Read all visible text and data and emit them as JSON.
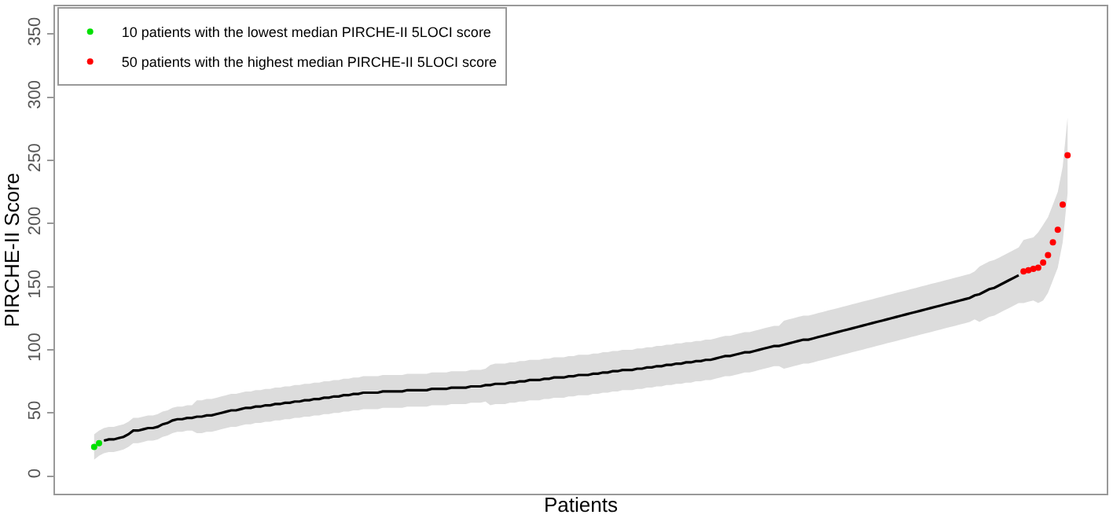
{
  "chart_data": {
    "type": "line",
    "xlabel": "Patients",
    "ylabel": "PIRCHE-II Score",
    "categories": [
      null,
      null,
      null,
      null,
      null,
      null,
      null,
      null,
      null,
      null,
      null,
      null,
      null,
      null,
      null,
      null,
      null,
      null,
      null,
      null,
      null,
      null,
      null,
      null,
      null,
      null,
      null,
      null,
      null,
      null,
      null,
      null,
      null,
      null,
      null,
      null,
      null,
      null,
      null,
      null,
      null,
      null,
      null,
      null,
      null,
      null,
      null,
      null,
      null,
      null,
      null,
      null,
      null,
      null,
      null,
      null,
      null,
      null,
      null,
      null,
      null,
      null,
      null,
      null,
      null,
      null,
      null,
      null,
      null,
      null,
      null,
      null,
      null,
      null,
      null,
      null,
      null,
      null,
      null,
      null,
      null,
      null,
      null,
      null,
      null,
      null,
      null,
      null,
      null,
      null,
      null,
      null,
      null,
      null,
      null,
      null,
      null,
      null,
      null,
      null,
      null,
      null,
      null,
      null,
      null,
      null,
      null,
      null,
      null,
      null,
      null,
      null,
      null,
      null,
      null,
      null,
      null,
      null,
      null,
      null,
      null,
      null,
      null,
      null,
      null,
      null,
      null,
      null,
      null,
      null,
      null,
      null,
      null,
      null,
      null,
      null,
      null,
      null,
      null,
      null,
      null,
      null,
      null,
      null,
      null,
      null,
      null,
      null,
      null,
      null,
      null,
      null,
      null,
      null,
      null,
      null,
      null,
      null,
      null,
      null,
      null,
      null,
      null,
      null,
      null,
      null,
      null,
      null,
      null,
      null,
      null,
      null,
      null,
      null,
      null,
      null,
      null,
      null,
      null,
      null,
      null,
      null,
      null,
      null,
      null,
      null,
      null,
      null,
      null,
      null,
      null,
      null,
      null,
      null,
      null,
      null,
      null,
      null,
      null,
      null
    ],
    "ylim": [
      -14,
      372
    ],
    "yticks": [
      0,
      50,
      100,
      150,
      200,
      250,
      300,
      350
    ],
    "legend": "top left",
    "tick_labels": "y",
    "series": [
      {
        "color": "#000000",
        "marker": "none",
        "values": [
          null,
          null,
          28,
          29,
          29,
          30,
          31,
          33,
          36,
          36,
          37,
          38,
          38,
          39,
          41,
          42,
          44,
          45,
          45,
          46,
          46,
          47,
          47,
          48,
          48,
          49,
          50,
          51,
          52,
          52,
          53,
          54,
          54,
          55,
          55,
          56,
          56,
          57,
          57,
          58,
          58,
          59,
          59,
          60,
          60,
          61,
          61,
          62,
          62,
          63,
          63,
          64,
          64,
          65,
          65,
          66,
          66,
          66,
          66,
          67,
          67,
          67,
          67,
          67,
          68,
          68,
          68,
          68,
          68,
          69,
          69,
          69,
          69,
          70,
          70,
          70,
          70,
          71,
          71,
          71,
          72,
          72,
          73,
          73,
          73,
          74,
          74,
          75,
          75,
          76,
          76,
          76,
          77,
          77,
          78,
          78,
          78,
          79,
          79,
          80,
          80,
          80,
          81,
          81,
          82,
          82,
          83,
          83,
          84,
          84,
          84,
          85,
          85,
          86,
          86,
          87,
          87,
          88,
          88,
          89,
          89,
          90,
          90,
          91,
          91,
          92,
          92,
          93,
          94,
          95,
          95,
          96,
          97,
          98,
          98,
          99,
          100,
          101,
          102,
          103,
          103,
          104,
          105,
          106,
          107,
          108,
          108,
          109,
          110,
          111,
          112,
          113,
          114,
          115,
          116,
          117,
          118,
          119,
          120,
          121,
          122,
          123,
          124,
          125,
          126,
          127,
          128,
          129,
          130,
          131,
          132,
          133,
          134,
          135,
          136,
          137,
          138,
          139,
          140,
          141,
          143,
          144,
          146,
          148,
          149,
          151,
          153,
          155,
          157,
          159,
          null,
          null,
          null,
          null,
          null,
          null,
          null,
          null,
          null,
          null
        ],
        "lower": [
          13,
          16,
          18,
          19,
          19,
          20,
          21,
          23,
          26,
          26,
          27,
          28,
          28,
          29,
          31,
          32,
          34,
          35,
          35,
          36,
          36,
          34,
          34,
          35,
          35,
          36,
          37,
          38,
          39,
          39,
          40,
          41,
          41,
          42,
          42,
          43,
          43,
          44,
          44,
          45,
          45,
          46,
          46,
          47,
          47,
          48,
          48,
          49,
          49,
          50,
          50,
          51,
          51,
          52,
          52,
          53,
          53,
          53,
          53,
          54,
          54,
          54,
          54,
          54,
          55,
          55,
          55,
          55,
          55,
          56,
          56,
          56,
          56,
          57,
          57,
          57,
          57,
          58,
          58,
          58,
          59,
          56,
          57,
          57,
          57,
          58,
          58,
          59,
          59,
          60,
          60,
          60,
          61,
          61,
          62,
          62,
          62,
          63,
          63,
          64,
          64,
          64,
          65,
          65,
          66,
          66,
          67,
          67,
          68,
          68,
          68,
          69,
          69,
          70,
          70,
          71,
          71,
          72,
          72,
          73,
          73,
          74,
          74,
          75,
          75,
          76,
          76,
          77,
          78,
          79,
          79,
          80,
          81,
          82,
          82,
          83,
          84,
          85,
          86,
          87,
          87,
          85,
          86,
          87,
          88,
          89,
          89,
          90,
          91,
          92,
          93,
          94,
          95,
          96,
          97,
          98,
          99,
          100,
          101,
          102,
          103,
          104,
          105,
          106,
          107,
          108,
          109,
          110,
          111,
          112,
          113,
          114,
          115,
          116,
          117,
          118,
          119,
          120,
          121,
          122,
          124,
          122,
          124,
          126,
          127,
          129,
          131,
          133,
          135,
          137,
          137,
          138,
          139,
          137,
          139,
          145,
          155,
          165,
          185,
          224
        ],
        "upper": [
          33,
          36,
          38,
          39,
          39,
          40,
          41,
          43,
          46,
          46,
          47,
          48,
          48,
          49,
          51,
          52,
          54,
          55,
          55,
          56,
          56,
          60,
          60,
          61,
          61,
          62,
          63,
          64,
          65,
          65,
          66,
          67,
          67,
          68,
          68,
          69,
          69,
          70,
          70,
          71,
          71,
          72,
          72,
          73,
          73,
          74,
          74,
          75,
          75,
          76,
          76,
          77,
          77,
          78,
          78,
          79,
          79,
          79,
          79,
          80,
          80,
          80,
          80,
          80,
          81,
          81,
          81,
          81,
          81,
          82,
          82,
          82,
          82,
          83,
          83,
          83,
          83,
          84,
          84,
          84,
          85,
          88,
          89,
          89,
          89,
          90,
          90,
          91,
          91,
          92,
          92,
          92,
          93,
          93,
          94,
          94,
          94,
          95,
          95,
          96,
          96,
          96,
          97,
          97,
          98,
          98,
          99,
          99,
          100,
          100,
          100,
          101,
          101,
          102,
          102,
          103,
          103,
          104,
          104,
          105,
          105,
          106,
          106,
          107,
          107,
          108,
          108,
          109,
          110,
          111,
          111,
          112,
          113,
          114,
          114,
          115,
          116,
          117,
          118,
          119,
          119,
          123,
          124,
          125,
          126,
          127,
          127,
          128,
          129,
          130,
          131,
          132,
          133,
          134,
          135,
          136,
          137,
          138,
          139,
          140,
          141,
          142,
          143,
          144,
          145,
          146,
          147,
          148,
          149,
          150,
          151,
          152,
          153,
          154,
          155,
          156,
          157,
          158,
          159,
          160,
          162,
          166,
          168,
          170,
          171,
          173,
          175,
          177,
          179,
          181,
          187,
          188,
          189,
          193,
          199,
          205,
          215,
          225,
          245,
          284
        ]
      },
      {
        "type": "scatter",
        "name": "10 patients with the lowest median PIRCHE-II 5LOCI score",
        "color": "#00e000",
        "marker": "circle",
        "values": [
          23,
          26,
          null,
          null,
          null,
          null,
          null,
          null,
          null,
          null,
          null,
          null,
          null,
          null,
          null,
          null,
          null,
          null,
          null,
          null,
          null,
          null,
          null,
          null,
          null,
          null,
          null,
          null,
          null,
          null,
          null,
          null,
          null,
          null,
          null,
          null,
          null,
          null,
          null,
          null,
          null,
          null,
          null,
          null,
          null,
          null,
          null,
          null,
          null,
          null,
          null,
          null,
          null,
          null,
          null,
          null,
          null,
          null,
          null,
          null,
          null,
          null,
          null,
          null,
          null,
          null,
          null,
          null,
          null,
          null,
          null,
          null,
          null,
          null,
          null,
          null,
          null,
          null,
          null,
          null,
          null,
          null,
          null,
          null,
          null,
          null,
          null,
          null,
          null,
          null,
          null,
          null,
          null,
          null,
          null,
          null,
          null,
          null,
          null,
          null,
          null,
          null,
          null,
          null,
          null,
          null,
          null,
          null,
          null,
          null,
          null,
          null,
          null,
          null,
          null,
          null,
          null,
          null,
          null,
          null,
          null,
          null,
          null,
          null,
          null,
          null,
          null,
          null,
          null,
          null,
          null,
          null,
          null,
          null,
          null,
          null,
          null,
          null,
          null,
          null,
          null,
          null,
          null,
          null,
          null,
          null,
          null,
          null,
          null,
          null,
          null,
          null,
          null,
          null,
          null,
          null,
          null,
          null,
          null,
          null,
          null,
          null,
          null,
          null,
          null,
          null,
          null,
          null,
          null,
          null,
          null,
          null,
          null,
          null,
          null,
          null,
          null,
          null,
          null,
          null,
          null,
          null,
          null,
          null,
          null,
          null,
          null,
          null,
          null,
          null,
          null,
          null,
          null,
          null,
          null,
          null,
          null,
          null,
          null,
          null
        ]
      },
      {
        "type": "scatter",
        "name": "50 patients with the highest median PIRCHE-II 5LOCI score",
        "color": "#ff0000",
        "marker": "circle",
        "values": [
          null,
          null,
          null,
          null,
          null,
          null,
          null,
          null,
          null,
          null,
          null,
          null,
          null,
          null,
          null,
          null,
          null,
          null,
          null,
          null,
          null,
          null,
          null,
          null,
          null,
          null,
          null,
          null,
          null,
          null,
          null,
          null,
          null,
          null,
          null,
          null,
          null,
          null,
          null,
          null,
          null,
          null,
          null,
          null,
          null,
          null,
          null,
          null,
          null,
          null,
          null,
          null,
          null,
          null,
          null,
          null,
          null,
          null,
          null,
          null,
          null,
          null,
          null,
          null,
          null,
          null,
          null,
          null,
          null,
          null,
          null,
          null,
          null,
          null,
          null,
          null,
          null,
          null,
          null,
          null,
          null,
          null,
          null,
          null,
          null,
          null,
          null,
          null,
          null,
          null,
          null,
          null,
          null,
          null,
          null,
          null,
          null,
          null,
          null,
          null,
          null,
          null,
          null,
          null,
          null,
          null,
          null,
          null,
          null,
          null,
          null,
          null,
          null,
          null,
          null,
          null,
          null,
          null,
          null,
          null,
          null,
          null,
          null,
          null,
          null,
          null,
          null,
          null,
          null,
          null,
          null,
          null,
          null,
          null,
          null,
          null,
          null,
          null,
          null,
          null,
          null,
          null,
          null,
          null,
          null,
          null,
          null,
          null,
          null,
          null,
          null,
          null,
          null,
          null,
          null,
          null,
          null,
          null,
          null,
          null,
          null,
          null,
          null,
          null,
          null,
          null,
          null,
          null,
          null,
          null,
          null,
          null,
          null,
          null,
          null,
          null,
          null,
          null,
          null,
          null,
          null,
          null,
          null,
          null,
          null,
          null,
          null,
          null,
          null,
          null,
          162,
          163,
          164,
          165,
          169,
          175,
          185,
          195,
          215,
          254
        ]
      }
    ]
  }
}
